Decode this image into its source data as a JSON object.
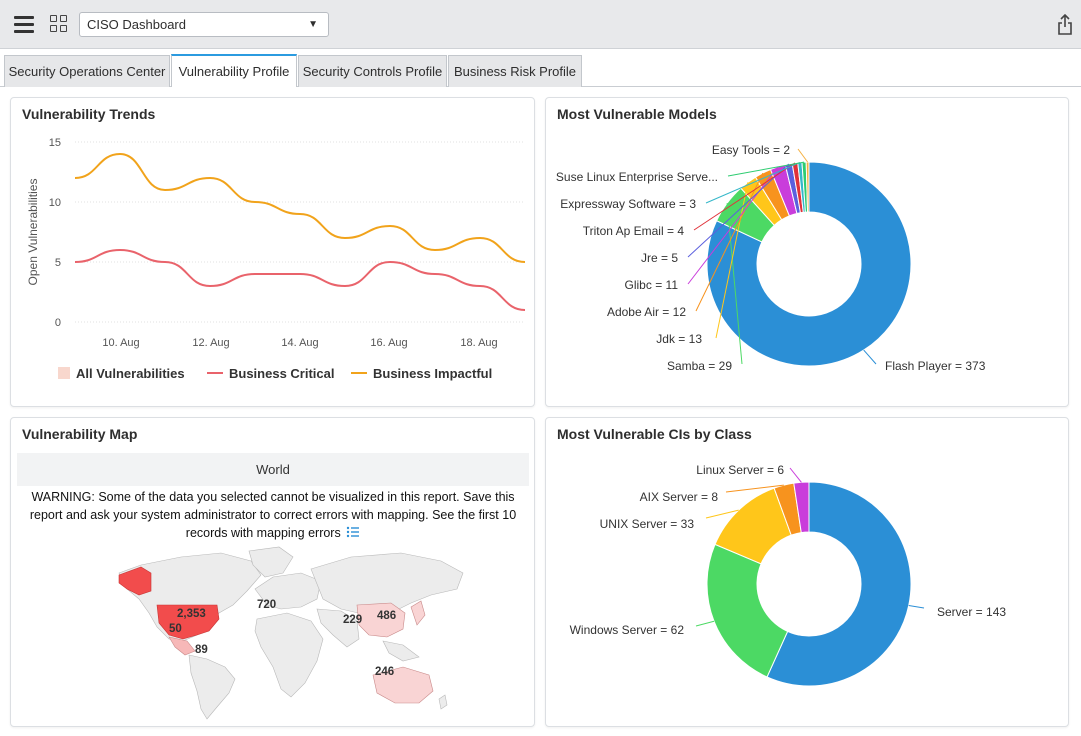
{
  "header": {
    "dashboard_select": "CISO Dashboard",
    "menu_icon": "hamburger-icon",
    "grid_icon": "grid-icon",
    "share_icon": "share-icon"
  },
  "tabs": [
    {
      "label": "Security Operations Center"
    },
    {
      "label": "Vulnerability Profile"
    },
    {
      "label": "Security Controls Profile"
    },
    {
      "label": "Business Risk Profile"
    }
  ],
  "trends": {
    "title": "Vulnerability Trends",
    "chart_data": {
      "type": "line",
      "ylabel": "Open Vulnerabilities",
      "ylim": [
        0,
        15
      ],
      "yticks": [
        "0",
        "5",
        "10",
        "15"
      ],
      "x_labels": [
        "10. Aug",
        "12. Aug",
        "14. Aug",
        "16. Aug",
        "18. Aug"
      ],
      "series": [
        {
          "name": "All Vulnerabilities",
          "color": "#f8d7cd",
          "values": []
        },
        {
          "name": "Business Critical",
          "color": "#e9636b",
          "values": [
            5,
            6,
            5,
            3,
            4,
            4,
            3,
            5,
            4,
            3,
            1
          ]
        },
        {
          "name": "Business Impactful",
          "color": "#f1a31b",
          "values": [
            12,
            14,
            11,
            12,
            10,
            9,
            7,
            8,
            6,
            7,
            5
          ]
        }
      ]
    }
  },
  "models": {
    "title": "Most Vulnerable Models",
    "chart_data": {
      "type": "pie",
      "slices": [
        {
          "label": "Flash Player = 373",
          "value": 373,
          "color": "#2b8fd6"
        },
        {
          "label": "Samba = 29",
          "value": 29,
          "color": "#4cd964"
        },
        {
          "label": "Jdk = 13",
          "value": 13,
          "color": "#ffc61a"
        },
        {
          "label": "Adobe Air = 12",
          "value": 12,
          "color": "#f7931e"
        },
        {
          "label": "Glibc = 11",
          "value": 11,
          "color": "#c93ddb"
        },
        {
          "label": "Jre = 5",
          "value": 5,
          "color": "#5b5fde"
        },
        {
          "label": "Triton Ap Email = 4",
          "value": 4,
          "color": "#e0323a"
        },
        {
          "label": "Expressway Software = 3",
          "value": 3,
          "color": "#35b7c9"
        },
        {
          "label": "Suse Linux Enterprise Serve...",
          "value": 3,
          "color": "#2ecc71"
        },
        {
          "label": "Easy Tools = 2",
          "value": 2,
          "color": "#f5b041"
        }
      ]
    }
  },
  "map": {
    "title": "Vulnerability Map",
    "world_label": "World",
    "warning": "WARNING: Some of the data you selected cannot be visualized in this report. Save this report and ask your system administrator to correct errors with mapping. See the first 10 records with mapping errors",
    "list_icon": "list-icon",
    "counts": [
      "2,353",
      "50",
      "89",
      "720",
      "229",
      "486",
      "246"
    ]
  },
  "cis": {
    "title": "Most Vulnerable CIs by Class",
    "chart_data": {
      "type": "pie",
      "slices": [
        {
          "label": "Server = 143",
          "value": 143,
          "color": "#2b8fd6"
        },
        {
          "label": "Windows Server = 62",
          "value": 62,
          "color": "#4cd964"
        },
        {
          "label": "UNIX Server = 33",
          "value": 33,
          "color": "#ffc61a"
        },
        {
          "label": "AIX Server = 8",
          "value": 8,
          "color": "#f7931e"
        },
        {
          "label": "Linux Server = 6",
          "value": 6,
          "color": "#c93ddb"
        }
      ]
    }
  }
}
